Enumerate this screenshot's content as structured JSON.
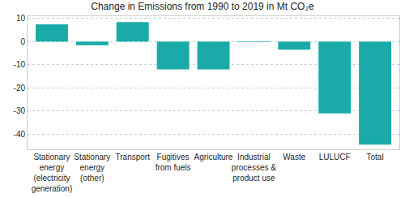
{
  "chart_data": {
    "type": "bar",
    "title": "Change in Emissions from 1990 to 2019 in Mt CO₂e",
    "categories": [
      "Stationary energy (electricity generation)",
      "Stationary energy (other)",
      "Transport",
      "Fugitives from fuels",
      "Agriculture",
      "Industrial processes & product use",
      "Waste",
      "LULUCF",
      "Total"
    ],
    "values": [
      7.5,
      -1.5,
      8.5,
      -12,
      -12,
      -0.2,
      -3.5,
      -31,
      -44.5
    ],
    "color": "#1aaba8",
    "ylim": [
      -46.5,
      11
    ],
    "yticks": [
      -40,
      -30,
      -20,
      -10,
      0,
      10
    ],
    "grid": true
  }
}
